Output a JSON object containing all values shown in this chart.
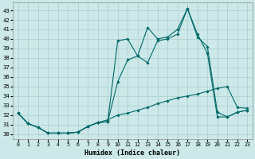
{
  "xlabel": "Humidex (Indice chaleur)",
  "x_ticks": [
    0,
    1,
    2,
    3,
    4,
    5,
    6,
    7,
    8,
    9,
    10,
    11,
    12,
    13,
    14,
    15,
    16,
    17,
    18,
    19,
    20,
    21,
    22,
    23
  ],
  "y_ticks": [
    30,
    31,
    32,
    33,
    34,
    35,
    36,
    37,
    38,
    39,
    40,
    41,
    42,
    43
  ],
  "ylim": [
    29.5,
    43.8
  ],
  "xlim": [
    -0.5,
    23.5
  ],
  "bg_color": "#cce8e8",
  "line_color": "#006868",
  "grid_color": "#aacece",
  "line1_y": [
    32.2,
    31.1,
    30.7,
    30.1,
    30.1,
    30.1,
    30.2,
    30.8,
    31.2,
    31.5,
    32.0,
    32.2,
    32.5,
    32.8,
    33.2,
    33.5,
    33.8,
    34.0,
    34.2,
    34.5,
    34.8,
    35.0,
    32.8,
    32.7
  ],
  "line2_y": [
    32.2,
    31.1,
    30.7,
    30.1,
    30.1,
    30.1,
    30.2,
    30.8,
    31.2,
    31.3,
    35.5,
    37.8,
    38.2,
    37.5,
    39.8,
    40.0,
    40.5,
    43.2,
    40.2,
    39.2,
    32.3,
    31.8,
    32.3,
    32.5
  ],
  "line3_y": [
    32.2,
    31.1,
    30.7,
    30.1,
    30.1,
    30.1,
    30.2,
    30.8,
    31.2,
    31.3,
    39.8,
    40.0,
    38.2,
    41.2,
    40.0,
    40.2,
    41.0,
    43.2,
    40.5,
    38.5,
    31.8,
    31.8,
    32.3,
    32.5
  ]
}
